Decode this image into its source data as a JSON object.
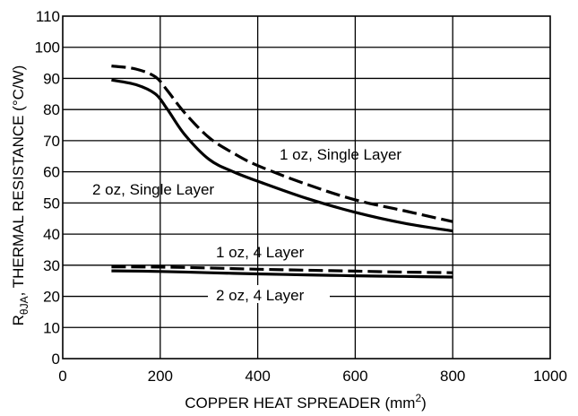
{
  "chart_data": {
    "type": "line",
    "title": "",
    "xlabel": "COPPER HEAT SPREADER (mm",
    "xlabel_sup": "2",
    "xlabel_suffix": ")",
    "ylabel_symbol": "R",
    "ylabel_subscript": "θJA",
    "ylabel_rest": ", THERMAL RESISTANCE (°C/W)",
    "xlim": [
      0,
      1000
    ],
    "ylim": [
      0,
      110
    ],
    "xticks": [
      "0",
      "200",
      "400",
      "600",
      "800",
      "1000"
    ],
    "yticks": [
      "0",
      "10",
      "20",
      "30",
      "40",
      "50",
      "60",
      "70",
      "80",
      "90",
      "100",
      "110"
    ],
    "grid": true,
    "series": [
      {
        "name": "1 oz, Single Layer",
        "style": "dashed",
        "x": [
          100,
          150,
          190,
          215,
          250,
          300,
          350,
          400,
          500,
          600,
          700,
          800
        ],
        "y": [
          94,
          93,
          90.5,
          86,
          79,
          71,
          66,
          62,
          56,
          51,
          47.5,
          44
        ]
      },
      {
        "name": "2 oz, Single Layer",
        "style": "solid",
        "x": [
          100,
          150,
          190,
          215,
          250,
          300,
          350,
          400,
          500,
          600,
          700,
          800
        ],
        "y": [
          89.5,
          88,
          85,
          80,
          72,
          64,
          60,
          57,
          51.5,
          47,
          43.5,
          41
        ]
      },
      {
        "name": "1 oz, 4 Layer",
        "style": "dashed",
        "x": [
          100,
          200,
          300,
          400,
          500,
          600,
          700,
          800
        ],
        "y": [
          29.5,
          29.4,
          29.1,
          28.7,
          28.4,
          28.1,
          27.8,
          27.6
        ]
      },
      {
        "name": "2 oz, 4 Layer",
        "style": "solid",
        "x": [
          100,
          200,
          300,
          400,
          500,
          600,
          700,
          800
        ],
        "y": [
          28.2,
          28,
          27.6,
          27.2,
          26.9,
          26.6,
          26.4,
          26.2
        ]
      }
    ]
  }
}
